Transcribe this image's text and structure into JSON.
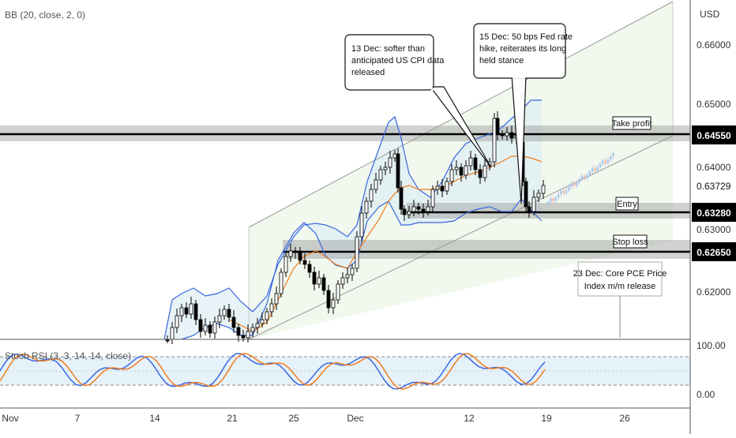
{
  "indicators": {
    "bb_label": "BB (20, close, 2, 0)",
    "rsi_label": "Stoch RSI (3, 3, 14, 14, close)"
  },
  "price_axis": {
    "currency": "USD",
    "ticks": [
      "0.66000",
      "0.65000",
      "0.64000",
      "0.63000",
      "0.62000"
    ],
    "rsi_ticks": [
      "100.00",
      "0.00"
    ]
  },
  "price_tags": {
    "take_profit": "0.64550",
    "current": "0.63729",
    "entry": "0.63280",
    "stop_loss": "0.62650"
  },
  "levels": {
    "take_profit_label": "Take profit",
    "entry_label": "Entry",
    "stop_loss_label": "Stop loss"
  },
  "annotations": {
    "cpi": [
      "13 Dec: softer than",
      "anticipated US CPI data",
      "released"
    ],
    "fed": [
      "15 Dec: 50 bps Fed rate",
      "hike, reiterates its long",
      "held stance"
    ],
    "pce": [
      "23 Dec: Core PCE Price",
      "Index m/m release"
    ]
  },
  "time_axis": {
    "labels": [
      "Nov",
      "7",
      "14",
      "21",
      "25",
      "Dec",
      "12",
      "19",
      "26"
    ]
  },
  "colors": {
    "up": "#ffffff",
    "down": "#000000",
    "bb_band": "#3a66e0",
    "bb_basis": "#f07c1e",
    "rsi_k": "#3a66e0",
    "rsi_d": "#f07c1e",
    "channel_fill": "#eef7ea",
    "projection_up": "#a9c4ec",
    "projection_down": "#f2b3a3"
  },
  "chart_data": {
    "type": "candlestick",
    "y_range": [
      0.6135,
      0.6672
    ],
    "take_profit": 0.6455,
    "entry": 0.6328,
    "stop_loss": 0.6265,
    "current_price": 0.63729
  }
}
